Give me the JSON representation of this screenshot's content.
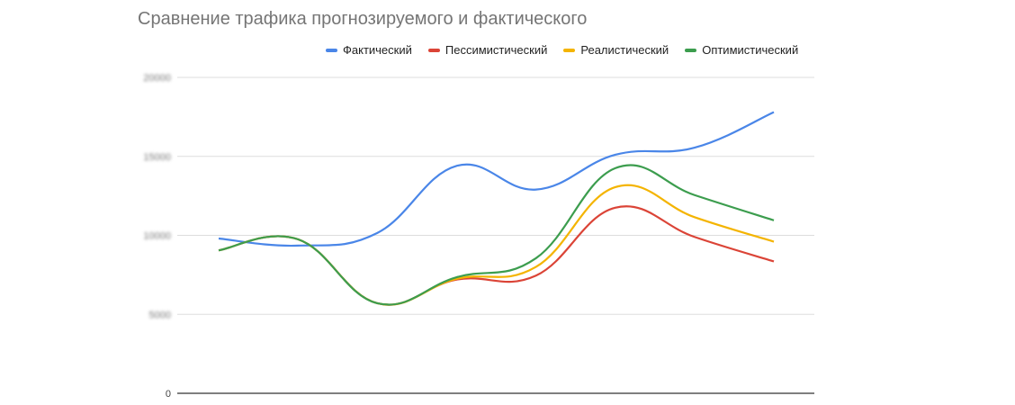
{
  "chart_data": {
    "type": "line",
    "title": "Сравнение трафика прогнозируемого и фактического",
    "xlabel": "",
    "ylabel": "",
    "ylim": [
      0,
      20000
    ],
    "yticks": [
      "0",
      "5000",
      "10000",
      "15000",
      "20000"
    ],
    "grid": true,
    "smooth": true,
    "legend_position": "top",
    "series": [
      {
        "name": "Фактический",
        "color": "#4a86e8",
        "values": [
          9800,
          9350,
          10150,
          14400,
          12900,
          15100,
          15550,
          17800
        ]
      },
      {
        "name": "Пессимистический",
        "color": "#db4437",
        "values": [
          9050,
          9750,
          5700,
          7200,
          7450,
          11750,
          9900,
          8350
        ]
      },
      {
        "name": "Реалистический",
        "color": "#f4b400",
        "values": [
          9050,
          9750,
          5700,
          7250,
          8000,
          13050,
          11150,
          9600
        ]
      },
      {
        "name": "Оптимистический",
        "color": "#3c9d4e",
        "values": [
          9050,
          9750,
          5700,
          7350,
          8550,
          14250,
          12550,
          10950
        ]
      }
    ]
  }
}
